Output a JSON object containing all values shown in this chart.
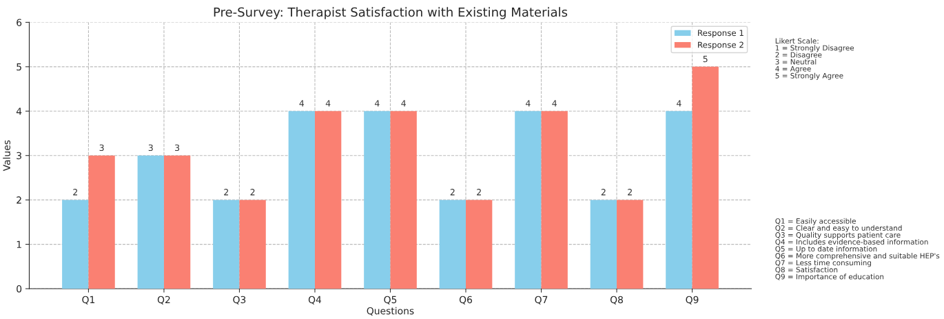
{
  "chart_data": {
    "type": "bar",
    "title": "Pre-Survey: Therapist Satisfaction with Existing Materials",
    "xlabel": "Questions",
    "ylabel": "Values",
    "categories": [
      "Q1",
      "Q2",
      "Q3",
      "Q4",
      "Q5",
      "Q6",
      "Q7",
      "Q8",
      "Q9"
    ],
    "series": [
      {
        "name": "Response 1",
        "color": "#87ceeb",
        "values": [
          2,
          3,
          2,
          4,
          4,
          2,
          4,
          2,
          4
        ]
      },
      {
        "name": "Response 2",
        "color": "#fa8072",
        "values": [
          3,
          3,
          2,
          4,
          4,
          2,
          4,
          2,
          5
        ]
      }
    ],
    "ylim": [
      0,
      6
    ],
    "yticks": [
      0,
      1,
      2,
      3,
      4,
      5,
      6
    ],
    "grid": true,
    "legend": "top right",
    "data_labels": true,
    "annotations": [
      "Likert Scale:\n1 = Strongly Disagree\n2 = Disagree\n3 = Neutral\n4 = Agree\n5 = Strongly Agree",
      "Q1 = Easily accessible\nQ2 = Clear and easy to understand\nQ3 = Quality supports patient care\nQ4 = Includes evidence-based information\nQ5 = Up to date information\nQ6 = More comprehensive and suitable HEP's\nQ7 = Less time consuming\nQ8 = Satisfaction\nQ9 = Importance of education"
    ]
  }
}
